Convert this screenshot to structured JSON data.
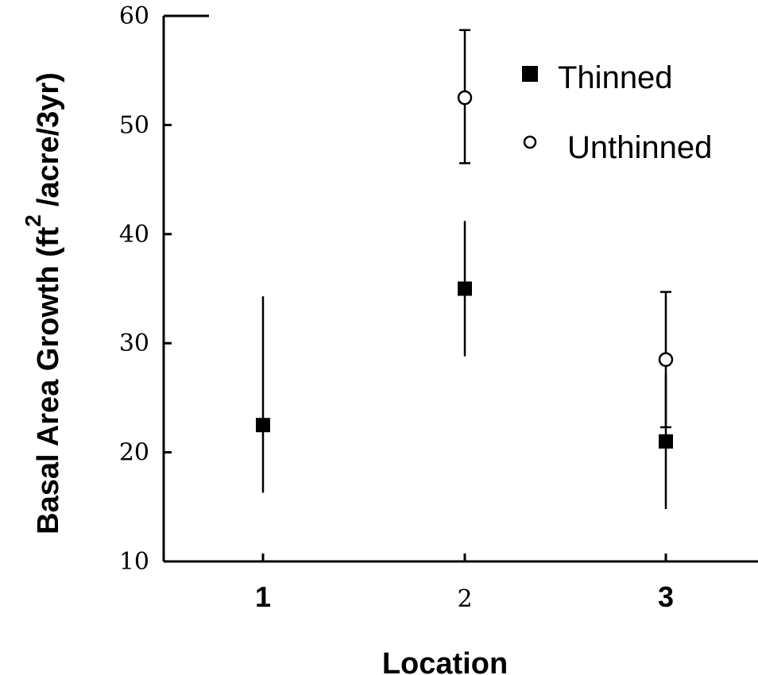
{
  "chart_data": {
    "type": "scatter",
    "categories": [
      "1",
      "2",
      "3"
    ],
    "xlabel": "Location",
    "ylabel_main": "Basal Area Growth (ft",
    "ylabel_sup": "2",
    "ylabel_tail": "/acre/3yr)",
    "ylim": [
      10,
      60
    ],
    "yticks": [
      "10",
      "20",
      "30",
      "40",
      "50",
      "60"
    ],
    "grid": false,
    "legend_position": "top-right",
    "series": [
      {
        "name": "Thinned",
        "marker": "filled-square",
        "points": [
          {
            "x": "1",
            "y": 22.5,
            "err_low": 16.3,
            "err_high": 34.3
          },
          {
            "x": "2",
            "y": 35.0,
            "err_low": 28.8,
            "err_high": 41.2
          },
          {
            "x": "3",
            "y": 21.0,
            "err_low": 14.8,
            "err_high": 27.2
          }
        ]
      },
      {
        "name": "Unthinned",
        "marker": "open-circle",
        "points": [
          {
            "x": "2",
            "y": 52.5,
            "err_low": 46.5,
            "err_high": 58.7
          },
          {
            "x": "3",
            "y": 28.5,
            "err_low": 22.3,
            "err_high": 34.7
          }
        ]
      }
    ]
  }
}
